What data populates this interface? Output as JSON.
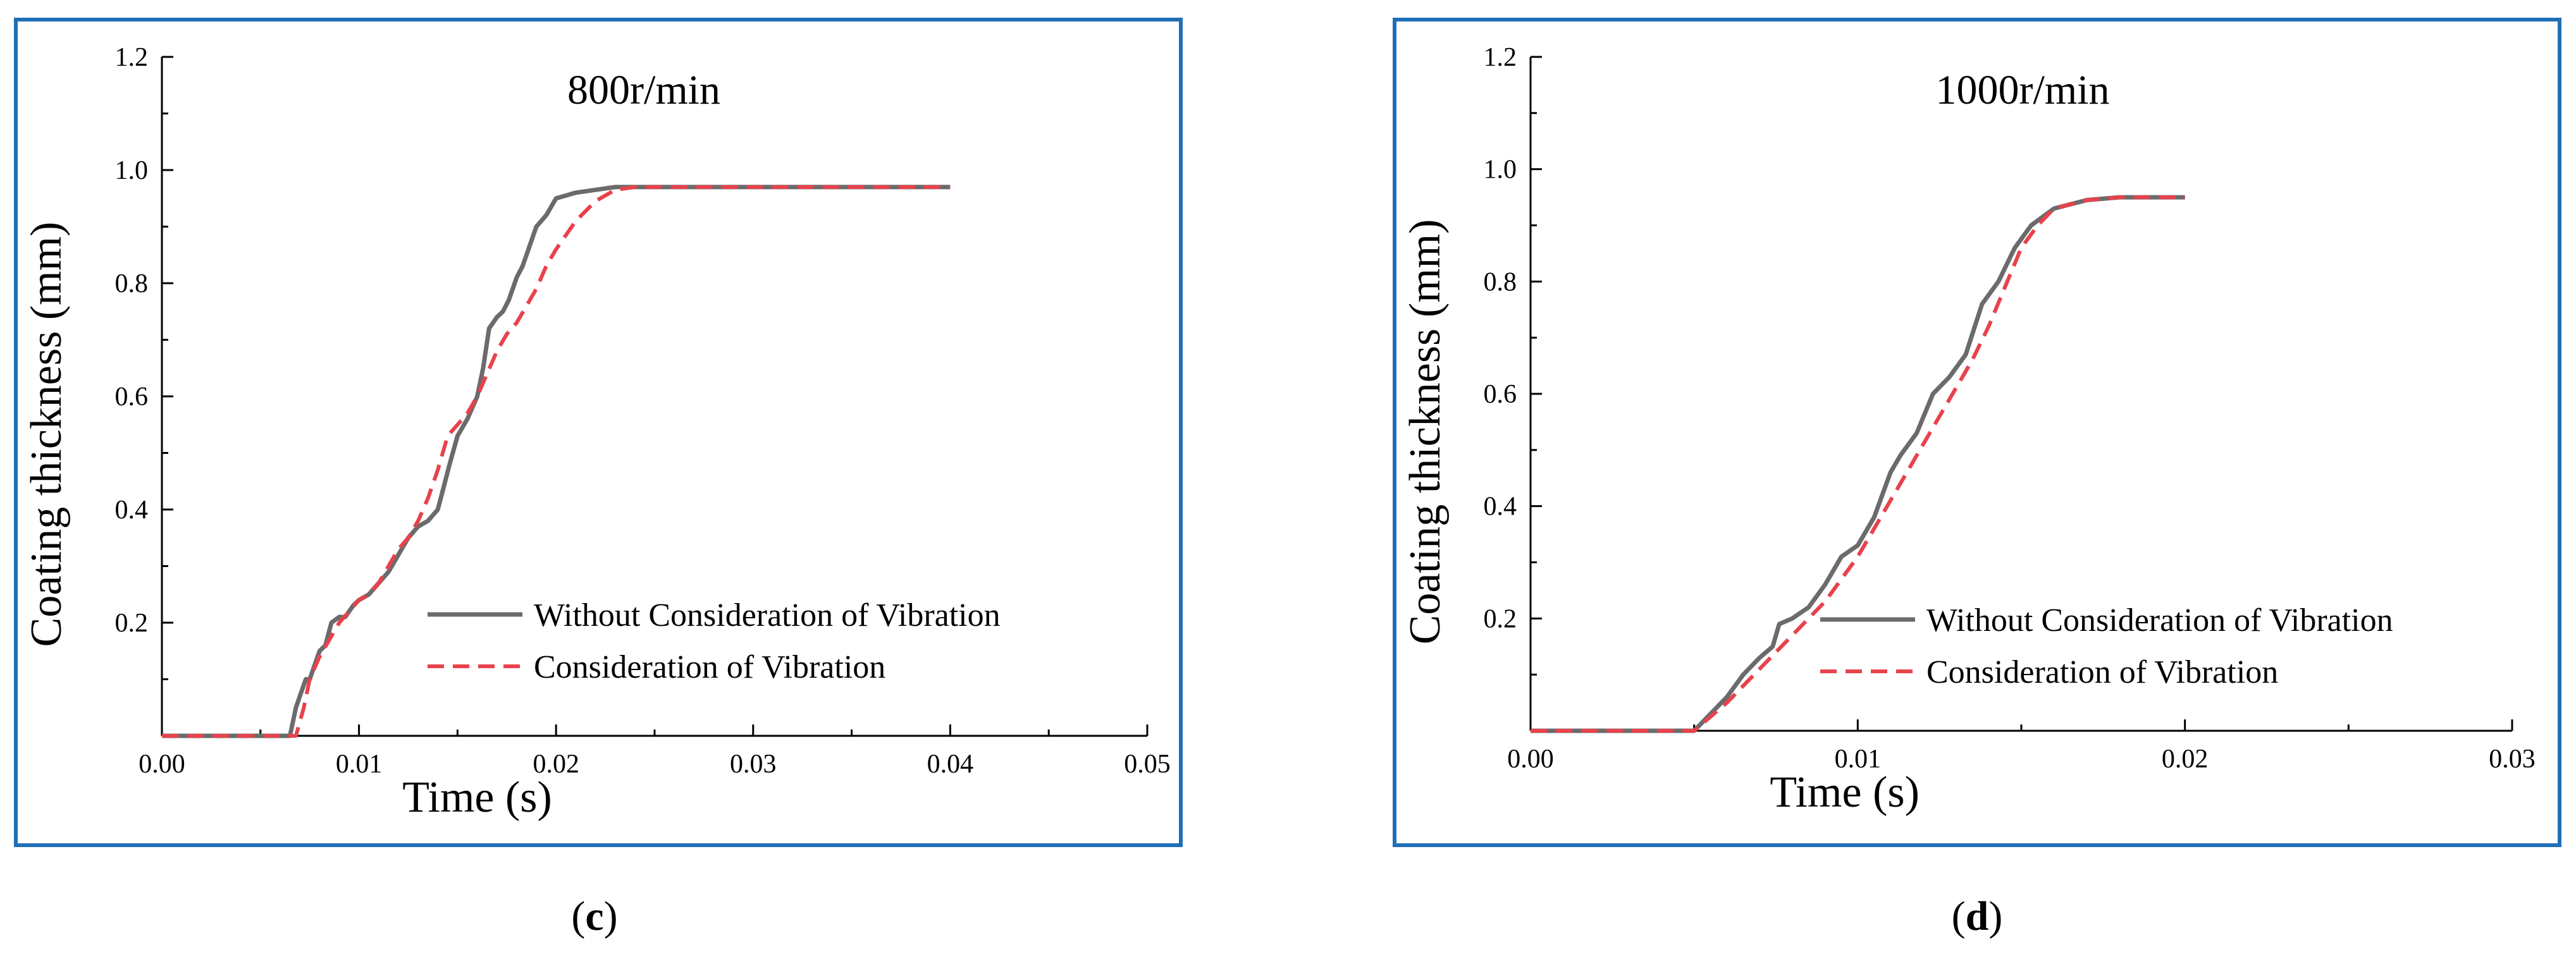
{
  "chart_data": [
    {
      "id": "c",
      "type": "line",
      "title": "800r/min",
      "panel_label": "c",
      "xlabel": "Time (s)",
      "ylabel": "Coating thickness (mm)",
      "xlim": [
        0,
        0.05
      ],
      "ylim": [
        0,
        1.2
      ],
      "xticks": [
        0.0,
        0.01,
        0.02,
        0.03,
        0.04,
        0.05
      ],
      "xtick_labels": [
        "0.00",
        "0.01",
        "0.02",
        "0.03",
        "0.04",
        "0.05"
      ],
      "yticks": [
        0.2,
        0.4,
        0.6,
        0.8,
        1.0,
        1.2
      ],
      "ytick_labels": [
        "0.2",
        "0.4",
        "0.6",
        "0.8",
        "1.0",
        "1.2"
      ],
      "legend_position": "lower-right",
      "series": [
        {
          "name": "Without Consideration of Vibration",
          "color": "#6b6b6b",
          "style": "solid",
          "x": [
            0,
            0.0065,
            0.0068,
            0.007,
            0.0073,
            0.0075,
            0.0078,
            0.008,
            0.0083,
            0.0086,
            0.009,
            0.0093,
            0.0097,
            0.01,
            0.0105,
            0.011,
            0.0115,
            0.012,
            0.0125,
            0.013,
            0.0135,
            0.014,
            0.0143,
            0.0146,
            0.015,
            0.0155,
            0.016,
            0.0163,
            0.0166,
            0.017,
            0.0173,
            0.0176,
            0.018,
            0.0183,
            0.0186,
            0.019,
            0.0195,
            0.02,
            0.021,
            0.022,
            0.023,
            0.024,
            0.03,
            0.04
          ],
          "y": [
            0,
            0,
            0.05,
            0.07,
            0.1,
            0.1,
            0.13,
            0.15,
            0.16,
            0.2,
            0.21,
            0.21,
            0.23,
            0.24,
            0.25,
            0.27,
            0.29,
            0.32,
            0.35,
            0.37,
            0.38,
            0.4,
            0.44,
            0.48,
            0.53,
            0.56,
            0.6,
            0.65,
            0.72,
            0.74,
            0.75,
            0.77,
            0.81,
            0.83,
            0.86,
            0.9,
            0.92,
            0.95,
            0.96,
            0.965,
            0.97,
            0.97,
            0.97,
            0.97
          ]
        },
        {
          "name": "Consideration of Vibration",
          "color": "#e8424c",
          "style": "dashed",
          "x": [
            0,
            0.0068,
            0.0072,
            0.0075,
            0.008,
            0.0085,
            0.009,
            0.0095,
            0.01,
            0.0105,
            0.011,
            0.0115,
            0.012,
            0.0125,
            0.013,
            0.0135,
            0.014,
            0.0145,
            0.015,
            0.0155,
            0.016,
            0.0165,
            0.017,
            0.0175,
            0.018,
            0.0185,
            0.019,
            0.0195,
            0.02,
            0.021,
            0.022,
            0.023,
            0.024,
            0.03,
            0.04
          ],
          "y": [
            0,
            0,
            0.05,
            0.1,
            0.14,
            0.17,
            0.2,
            0.22,
            0.24,
            0.25,
            0.27,
            0.3,
            0.33,
            0.35,
            0.38,
            0.42,
            0.47,
            0.53,
            0.55,
            0.57,
            0.6,
            0.64,
            0.68,
            0.71,
            0.73,
            0.76,
            0.79,
            0.83,
            0.86,
            0.91,
            0.945,
            0.965,
            0.97,
            0.97,
            0.97
          ]
        }
      ]
    },
    {
      "id": "d",
      "type": "line",
      "title": "1000r/min",
      "panel_label": "d",
      "xlabel": "Time (s)",
      "ylabel": "Coating thickness (mm)",
      "xlim": [
        0,
        0.03
      ],
      "ylim": [
        0,
        1.2
      ],
      "xticks": [
        0.0,
        0.01,
        0.02,
        0.03
      ],
      "xtick_labels": [
        "0.00",
        "0.01",
        "0.02",
        "0.03"
      ],
      "yticks": [
        0.2,
        0.4,
        0.6,
        0.8,
        1.0,
        1.2
      ],
      "ytick_labels": [
        "0.2",
        "0.4",
        "0.6",
        "0.8",
        "1.0",
        "1.2"
      ],
      "legend_position": "lower-right",
      "series": [
        {
          "name": "Without Consideration of Vibration",
          "color": "#6b6b6b",
          "style": "solid",
          "x": [
            0,
            0.005,
            0.0055,
            0.006,
            0.0065,
            0.007,
            0.0074,
            0.0076,
            0.008,
            0.0085,
            0.009,
            0.0095,
            0.01,
            0.0105,
            0.011,
            0.0113,
            0.0118,
            0.0123,
            0.0128,
            0.0133,
            0.0138,
            0.0143,
            0.0148,
            0.0153,
            0.016,
            0.017,
            0.018,
            0.019,
            0.02
          ],
          "y": [
            0,
            0,
            0.03,
            0.06,
            0.1,
            0.13,
            0.15,
            0.19,
            0.2,
            0.22,
            0.26,
            0.31,
            0.33,
            0.38,
            0.46,
            0.49,
            0.53,
            0.6,
            0.63,
            0.67,
            0.76,
            0.8,
            0.86,
            0.9,
            0.93,
            0.945,
            0.95,
            0.95,
            0.95
          ]
        },
        {
          "name": "Consideration of Vibration",
          "color": "#e8424c",
          "style": "dashed",
          "x": [
            0,
            0.005,
            0.0055,
            0.006,
            0.0065,
            0.007,
            0.0075,
            0.008,
            0.0085,
            0.009,
            0.0095,
            0.01,
            0.0105,
            0.011,
            0.0115,
            0.012,
            0.0125,
            0.013,
            0.0135,
            0.014,
            0.0145,
            0.015,
            0.0155,
            0.016,
            0.017,
            0.018,
            0.019,
            0.02
          ],
          "y": [
            0,
            0,
            0.025,
            0.05,
            0.08,
            0.11,
            0.14,
            0.17,
            0.2,
            0.23,
            0.27,
            0.31,
            0.36,
            0.41,
            0.46,
            0.51,
            0.56,
            0.61,
            0.66,
            0.72,
            0.79,
            0.86,
            0.9,
            0.93,
            0.945,
            0.95,
            0.95,
            0.95
          ]
        }
      ]
    }
  ]
}
